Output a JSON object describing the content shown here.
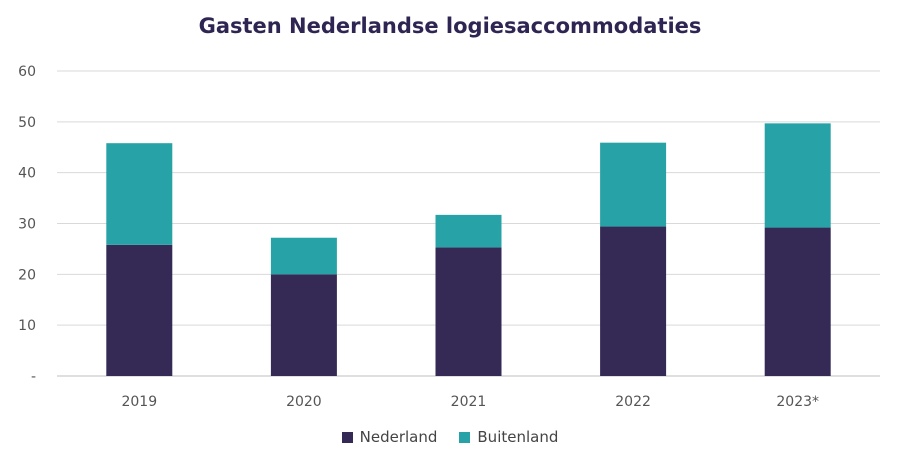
{
  "chart_data": {
    "type": "bar",
    "stacked": true,
    "title": "Gasten Nederlandse logiesaccommodaties",
    "categories": [
      "2019",
      "2020",
      "2021",
      "2022",
      "2023*"
    ],
    "series": [
      {
        "name": "Nederland",
        "color": "#352a55",
        "values": [
          25.8,
          20.0,
          25.3,
          29.4,
          29.2
        ]
      },
      {
        "name": "Buitenland",
        "color": "#27a3a8",
        "values": [
          20.0,
          7.2,
          6.4,
          16.5,
          20.5
        ]
      }
    ],
    "y_ticks": [
      "-",
      "10",
      "20",
      "30",
      "40",
      "50",
      "60"
    ],
    "ylim": [
      0,
      60
    ],
    "grid": true,
    "legend_position": "bottom"
  }
}
